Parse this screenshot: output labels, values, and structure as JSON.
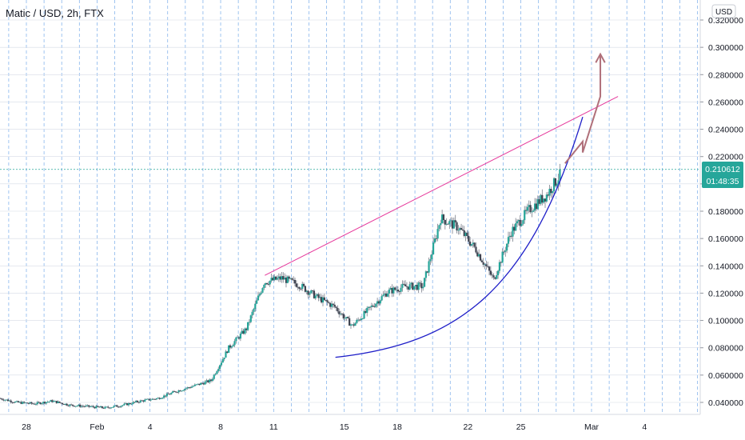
{
  "header": {
    "title": "Matic / USD, 2h, FTX"
  },
  "price_axis": {
    "currency": "USD"
  },
  "last_price": {
    "value": "0.210612",
    "countdown": "01:48:35",
    "color": "#26a69a"
  },
  "colors": {
    "up": "#26a69a",
    "down": "#ef5350",
    "candle_body": "#3f4350",
    "trendline": "#e6399b",
    "curve": "#1e1ec8",
    "arrow": "#b0707a",
    "vgrid": "#4a90e2",
    "hgrid": "#d6dbe6"
  },
  "chart_data": {
    "type": "candlestick",
    "title": "Matic / USD, 2h, FTX",
    "ylabel": "USD",
    "ylim": [
      0.031,
      0.327
    ],
    "xlim": [
      "2021-01-26T16:00",
      "2021-03-06T12:00"
    ],
    "y_ticks": [
      "0.320000",
      "0.300000",
      "0.280000",
      "0.260000",
      "0.240000",
      "0.220000",
      "0.200000",
      "0.180000",
      "0.160000",
      "0.140000",
      "0.120000",
      "0.100000",
      "0.080000",
      "0.060000",
      "0.040000"
    ],
    "x_ticks": [
      {
        "label": "28",
        "date": "2021-01-28"
      },
      {
        "label": "Feb",
        "date": "2021-02-01"
      },
      {
        "label": "4",
        "date": "2021-02-04"
      },
      {
        "label": "8",
        "date": "2021-02-08"
      },
      {
        "label": "11",
        "date": "2021-02-11"
      },
      {
        "label": "15",
        "date": "2021-02-15"
      },
      {
        "label": "18",
        "date": "2021-02-18"
      },
      {
        "label": "22",
        "date": "2021-02-22"
      },
      {
        "label": "25",
        "date": "2021-02-25"
      },
      {
        "label": "Mar",
        "date": "2021-03-01"
      },
      {
        "label": "4",
        "date": "2021-03-04"
      }
    ],
    "series_close": [
      [
        "2021-01-26",
        0.043
      ],
      [
        "2021-01-27",
        0.04
      ],
      [
        "2021-01-28",
        0.039
      ],
      [
        "2021-01-29",
        0.041
      ],
      [
        "2021-01-30",
        0.038
      ],
      [
        "2021-01-31",
        0.037
      ],
      [
        "2021-02-01",
        0.036
      ],
      [
        "2021-02-02",
        0.038
      ],
      [
        "2021-02-03",
        0.041
      ],
      [
        "2021-02-04",
        0.043
      ],
      [
        "2021-02-05",
        0.048
      ],
      [
        "2021-02-06",
        0.052
      ],
      [
        "2021-02-07",
        0.056
      ],
      [
        "2021-02-08",
        0.08
      ],
      [
        "2021-02-09",
        0.094
      ],
      [
        "2021-02-10",
        0.128
      ],
      [
        "2021-02-11",
        0.131
      ],
      [
        "2021-02-12",
        0.126
      ],
      [
        "2021-02-13",
        0.117
      ],
      [
        "2021-02-14",
        0.11
      ],
      [
        "2021-02-15",
        0.096
      ],
      [
        "2021-02-16",
        0.109
      ],
      [
        "2021-02-17",
        0.121
      ],
      [
        "2021-02-18",
        0.125
      ],
      [
        "2021-02-19",
        0.125
      ],
      [
        "2021-02-20",
        0.175
      ],
      [
        "2021-02-21",
        0.168
      ],
      [
        "2021-02-22",
        0.152
      ],
      [
        "2021-02-23",
        0.13
      ],
      [
        "2021-02-24",
        0.165
      ],
      [
        "2021-02-25",
        0.181
      ],
      [
        "2021-02-26",
        0.192
      ],
      [
        "2021-02-27",
        0.211
      ]
    ],
    "annotations": {
      "trendline": [
        [
          "2021-02-10",
          0.133
        ],
        [
          "2021-03-02",
          0.264
        ]
      ],
      "curve": [
        [
          "2021-02-14",
          0.073
        ],
        [
          "2021-02-21",
          0.083
        ],
        [
          "2021-02-25",
          0.122
        ],
        [
          "2021-02-28",
          0.249
        ]
      ],
      "arrow": [
        [
          "2021-02-27",
          0.215
        ],
        [
          "2021-02-28",
          0.231
        ],
        [
          "2021-02-28",
          0.223
        ],
        [
          "2021-02-29",
          0.264
        ],
        [
          "2021-03-01",
          0.295
        ]
      ]
    }
  }
}
